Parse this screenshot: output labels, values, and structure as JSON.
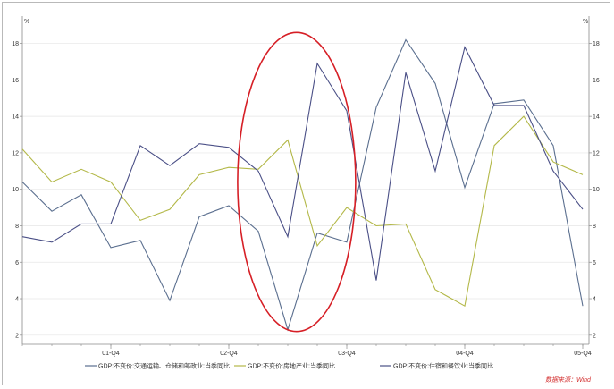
{
  "chart_data": {
    "type": "line",
    "y_unit_left": "%",
    "y_unit_right": "%",
    "ylim": [
      1.5,
      19.5
    ],
    "y_ticks": [
      2,
      4,
      6,
      8,
      10,
      12,
      14,
      16,
      18
    ],
    "x_tick_labels": [
      "01-Q4",
      "02-Q4",
      "03-Q4",
      "04-Q4",
      "05-Q4"
    ],
    "x_tick_index": [
      3,
      7,
      11,
      15,
      19
    ],
    "grid": true,
    "series": [
      {
        "name": "GDP:不变价:交通运输、仓储和邮政业:当季同比",
        "color": "#5b6f8f",
        "values": [
          10.4,
          8.8,
          9.7,
          6.8,
          7.2,
          3.9,
          8.5,
          9.1,
          7.7,
          2.3,
          7.6,
          7.1,
          14.5,
          18.2,
          15.8,
          10.1,
          14.7,
          14.9,
          12.4,
          3.6
        ]
      },
      {
        "name": "GDP:不变价:房地产业:当季同比",
        "color": "#b3b848",
        "values": [
          12.2,
          10.4,
          11.1,
          10.4,
          8.3,
          8.9,
          10.8,
          11.2,
          11.1,
          12.7,
          6.9,
          9.0,
          8.0,
          8.1,
          4.5,
          3.6,
          12.4,
          14.0,
          11.5,
          10.8
        ]
      },
      {
        "name": "GDP:不变价:住宿和餐饮业:当季同比",
        "color": "#4a4f86",
        "values": [
          7.4,
          7.1,
          8.1,
          8.1,
          12.4,
          11.3,
          12.5,
          12.3,
          11.0,
          7.4,
          16.9,
          14.3,
          5.0,
          16.4,
          11.0,
          17.8,
          14.6,
          14.6,
          11.0,
          8.9
        ]
      }
    ],
    "legend_placement": "bottom",
    "source_note": "数据来源：Wind",
    "highlight": {
      "shape": "ellipse",
      "color": "#d61f26",
      "x_center_index": 9.3,
      "y_center": 10.4,
      "x_radius_index": 2.0,
      "y_radius": 8.2
    }
  }
}
